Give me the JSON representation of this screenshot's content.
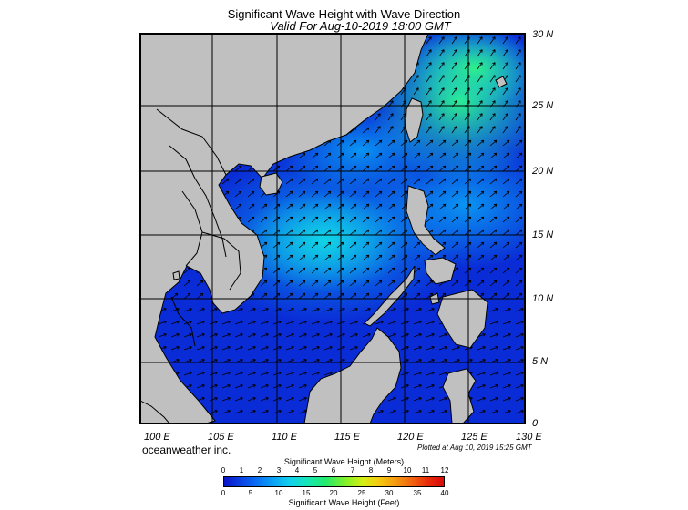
{
  "title": "Significant Wave Height with Wave Direction",
  "subtitle": "Valid For Aug-10-2019 18:00 GMT",
  "lat_labels": [
    "30 N",
    "25 N",
    "20 N",
    "15 N",
    "10 N",
    "5 N",
    "0"
  ],
  "lon_labels": [
    "100 E",
    "105 E",
    "110 E",
    "115 E",
    "120 E",
    "125 E",
    "130 E"
  ],
  "brand": "oceanweather inc.",
  "plotted": "Plotted at Aug 10, 2019 15:25 GMT",
  "colorbar": {
    "meters_title": "Significant Wave Height (Meters)",
    "feet_title": "Significant Wave Height (Feet)",
    "meters_ticks": [
      "0",
      "1",
      "2",
      "3",
      "4",
      "5",
      "6",
      "7",
      "8",
      "9",
      "10",
      "11",
      "12"
    ],
    "feet_ticks": [
      "0",
      "5",
      "10",
      "15",
      "20",
      "25",
      "30",
      "35",
      "40"
    ]
  },
  "colors": {
    "land": "#c0c0c0",
    "water_low": "#0a2cd6",
    "water_mid": "#0aa0f5",
    "water_high": "#22ea70",
    "arrow": "#000000"
  },
  "map_extent": {
    "lon": [
      100,
      130
    ],
    "lat": [
      0,
      30
    ]
  }
}
